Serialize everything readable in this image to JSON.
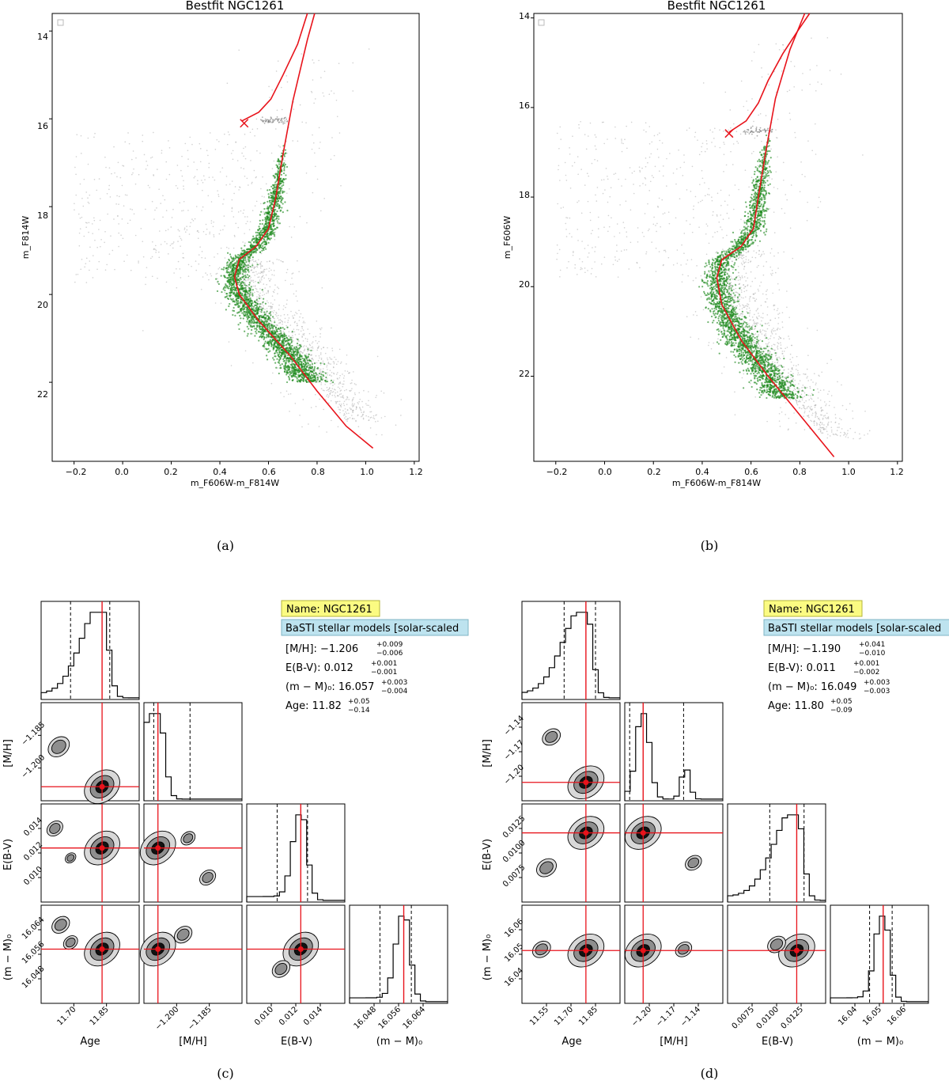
{
  "colors": {
    "fit_line": "#e8131b",
    "member_stars": "#1f8a1f",
    "field_stars": "#9a9a9a",
    "name_box": "#fbfb82",
    "model_box": "#bde3ef"
  },
  "panels": {
    "a": {
      "caption": "(a)",
      "chart_data": {
        "type": "scatter",
        "title": "Bestfit NGC1261",
        "xlabel": "m_F606W-m_F814W",
        "ylabel": "m_F814W",
        "xlim": [
          -0.29,
          1.22
        ],
        "ylim": [
          23.8,
          13.6
        ],
        "xticks": [
          -0.2,
          0.0,
          0.2,
          0.4,
          0.6,
          0.8,
          1.0,
          1.2
        ],
        "yticks": [
          14,
          16,
          18,
          20,
          22
        ],
        "xtick_labels": [
          "−0.2",
          "0.0",
          "0.2",
          "0.4",
          "0.6",
          "0.8",
          "1.0",
          "1.2"
        ],
        "ytick_labels": [
          "14",
          "16",
          "18",
          "20",
          "22"
        ],
        "isochrone_rgb": [
          [
            1.03,
            23.5
          ],
          [
            0.92,
            23.0
          ],
          [
            0.8,
            22.2
          ],
          [
            0.69,
            21.4
          ],
          [
            0.56,
            20.6
          ],
          [
            0.48,
            20.0
          ],
          [
            0.46,
            19.6
          ],
          [
            0.48,
            19.2
          ],
          [
            0.55,
            18.9
          ],
          [
            0.6,
            18.5
          ],
          [
            0.63,
            17.8
          ],
          [
            0.66,
            16.8
          ],
          [
            0.7,
            15.6
          ],
          [
            0.76,
            14.2
          ],
          [
            0.79,
            13.6
          ]
        ],
        "isochrone_hb": [
          [
            0.49,
            16.05
          ],
          [
            0.56,
            15.85
          ],
          [
            0.61,
            15.55
          ],
          [
            0.66,
            15.0
          ],
          [
            0.72,
            14.3
          ],
          [
            0.76,
            13.6
          ]
        ],
        "bestfit_marker": [
          0.5,
          16.1
        ]
      }
    },
    "b": {
      "caption": "(b)",
      "chart_data": {
        "type": "scatter",
        "title": "Bestfit NGC1261",
        "xlabel": "m_F606W-m_F814W",
        "ylabel": "m_F606W",
        "xlim": [
          -0.29,
          1.22
        ],
        "ylim": [
          23.9,
          13.9
        ],
        "xticks": [
          -0.2,
          0.0,
          0.2,
          0.4,
          0.6,
          0.8,
          1.0,
          1.2
        ],
        "yticks": [
          14,
          16,
          18,
          20,
          22
        ],
        "xtick_labels": [
          "−0.2",
          "0.0",
          "0.2",
          "0.4",
          "0.6",
          "0.8",
          "1.0",
          "1.2"
        ],
        "ytick_labels": [
          "14",
          "16",
          "18",
          "20",
          "22"
        ],
        "isochrone_rgb": [
          [
            0.94,
            23.8
          ],
          [
            0.85,
            23.2
          ],
          [
            0.76,
            22.6
          ],
          [
            0.67,
            22.0
          ],
          [
            0.56,
            21.2
          ],
          [
            0.48,
            20.4
          ],
          [
            0.46,
            19.8
          ],
          [
            0.48,
            19.4
          ],
          [
            0.56,
            19.1
          ],
          [
            0.61,
            18.7
          ],
          [
            0.63,
            18.0
          ],
          [
            0.66,
            17.0
          ],
          [
            0.7,
            15.8
          ],
          [
            0.76,
            14.7
          ],
          [
            0.82,
            13.9
          ]
        ],
        "isochrone_hb": [
          [
            0.51,
            16.55
          ],
          [
            0.58,
            16.3
          ],
          [
            0.63,
            15.9
          ],
          [
            0.67,
            15.4
          ],
          [
            0.73,
            14.8
          ],
          [
            0.79,
            14.3
          ],
          [
            0.84,
            13.9
          ]
        ],
        "bestfit_marker": [
          0.51,
          16.58
        ]
      }
    },
    "c": {
      "caption": "(c)",
      "name_label": "Name: NGC1261",
      "model_label": "BaSTI stellar models [solar-scaled",
      "params": {
        "mh": "[M/H]: −1.206",
        "mh_up": "+0.009",
        "mh_dn": "−0.006",
        "ebv": "E(B-V): 0.012",
        "ebv_up": "+0.001",
        "ebv_dn": "−0.001",
        "dm": "(m − M)₀: 16.057",
        "dm_up": "+0.003",
        "dm_dn": "−0.004",
        "age": "Age: 11.82",
        "age_up": "+0.05",
        "age_dn": "−0.14"
      },
      "chart_data": {
        "type": "corner",
        "variables": [
          "Age",
          "[M/H]",
          "E(B-V)",
          "(m − M)₀"
        ],
        "best": [
          11.82,
          -1.206,
          0.012,
          16.057
        ],
        "ranges": [
          [
            11.59,
            11.96
          ],
          [
            -1.211,
            -1.176
          ],
          [
            0.0093,
            0.0142
          ],
          [
            16.0465,
            16.0655
          ]
        ],
        "ticks": {
          "age": [
            "11.70",
            "11.85"
          ],
          "mh": [
            "−1.200",
            "−1.185"
          ],
          "ebv": [
            "0.010",
            "0.012",
            "0.014"
          ],
          "dm": [
            "16.048",
            "16.056",
            "16.064"
          ]
        }
      }
    },
    "d": {
      "caption": "(d)",
      "name_label": "Name: NGC1261",
      "model_label": "BaSTI stellar models [solar-scaled",
      "params": {
        "mh": "[M/H]: −1.190",
        "mh_up": "+0.041",
        "mh_dn": "−0.010",
        "ebv": "E(B-V): 0.011",
        "ebv_up": "+0.001",
        "ebv_dn": "−0.002",
        "dm": "(m − M)₀: 16.049",
        "dm_up": "+0.003",
        "dm_dn": "−0.003",
        "age": "Age: 11.80",
        "age_up": "+0.05",
        "age_dn": "−0.09"
      },
      "chart_data": {
        "type": "corner",
        "variables": [
          "Age",
          "[M/H]",
          "E(B-V)",
          "(m − M)₀"
        ],
        "best": [
          11.8,
          -1.19,
          0.011,
          16.049
        ],
        "ranges": [
          [
            11.5,
            11.96
          ],
          [
            -1.205,
            -1.125
          ],
          [
            0.0055,
            0.0133
          ],
          [
            16.035,
            16.061
          ]
        ],
        "ticks": {
          "age": [
            "11.55",
            "11.70",
            "11.85"
          ],
          "mh": [
            "−1.20",
            "−1.17",
            "−1.14"
          ],
          "ebv": [
            "0.0075",
            "0.0100",
            "0.0125"
          ],
          "dm": [
            "16.04",
            "16.05",
            "16.06"
          ]
        }
      }
    }
  }
}
